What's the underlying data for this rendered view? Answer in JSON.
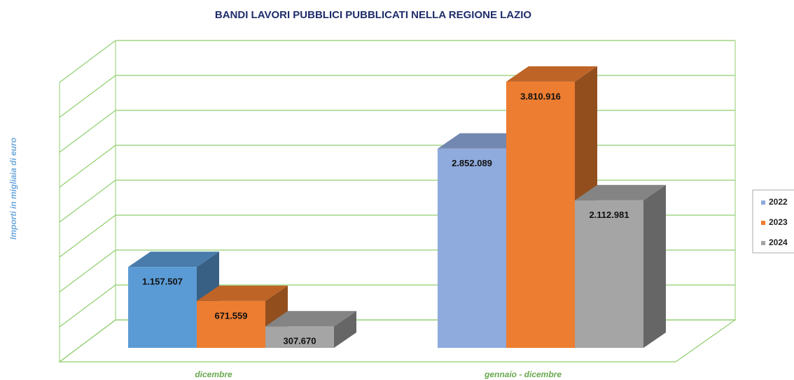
{
  "chart_data": {
    "type": "bar3d",
    "title": "BANDI LAVORI PUBBLICI PUBBLICATI NELLA REGIONE LAZIO",
    "y_label": "Importi in migliaia di euro",
    "categories": [
      "dicembre",
      "gennaio - dicembre"
    ],
    "series": [
      {
        "name": "2022",
        "color": "#8faadc",
        "colors": [
          "#5b9bd5",
          "#8faadc"
        ],
        "values": [
          1157507,
          2852089
        ],
        "value_labels": [
          "1.157.507",
          "2.852.089"
        ]
      },
      {
        "name": "2023",
        "color": "#ed7d31",
        "values": [
          671559,
          3810916
        ],
        "value_labels": [
          "671.559",
          "3.810.916"
        ]
      },
      {
        "name": "2024",
        "color": "#a5a5a5",
        "values": [
          307670,
          2112981
        ],
        "value_labels": [
          "307.670",
          "2.112.981"
        ]
      }
    ],
    "ylim": [
      0,
      4000000
    ],
    "yticks": [
      0,
      500000,
      1000000,
      1500000,
      2000000,
      2500000,
      3000000,
      3500000,
      4000000
    ],
    "grid": true
  }
}
